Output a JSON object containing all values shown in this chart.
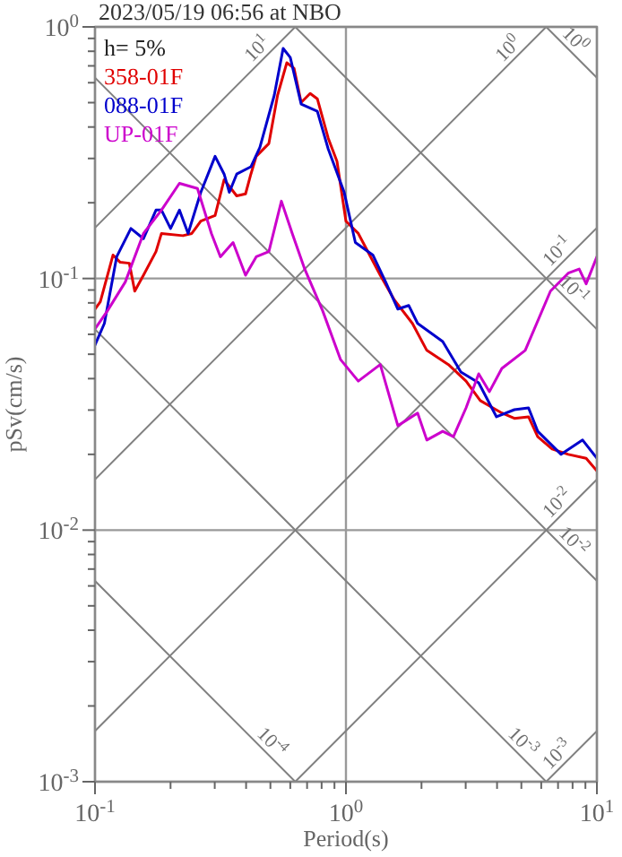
{
  "chart_data": {
    "type": "line",
    "title": "2023/05/19 06:56 at NBO",
    "xlabel": "Period(s)",
    "ylabel": "pSv(cm/s)",
    "legend_title": "h= 5%",
    "legend": "top left",
    "log": "xy",
    "grid": true,
    "xlim": [
      0.1,
      10
    ],
    "ylim": [
      0.001,
      1
    ],
    "xticks": [
      {
        "value": 0.1,
        "label": "10$^{-1}$"
      },
      {
        "value": 0.2,
        "label": null
      },
      {
        "value": 0.3,
        "label": null
      },
      {
        "value": 0.4,
        "label": null
      },
      {
        "value": 0.5,
        "label": null
      },
      {
        "value": 0.6,
        "label": null
      },
      {
        "value": 0.7,
        "label": null
      },
      {
        "value": 0.8,
        "label": null
      },
      {
        "value": 0.9,
        "label": null
      },
      {
        "value": 1,
        "label": "10$^{0}$"
      },
      {
        "value": 2,
        "label": null
      },
      {
        "value": 3,
        "label": null
      },
      {
        "value": 4,
        "label": null
      },
      {
        "value": 5,
        "label": null
      },
      {
        "value": 6,
        "label": null
      },
      {
        "value": 7,
        "label": null
      },
      {
        "value": 8,
        "label": null
      },
      {
        "value": 9,
        "label": null
      },
      {
        "value": 10,
        "label": "10$^{1}$"
      }
    ],
    "yticks": [
      {
        "value": 0.001,
        "label": "10$^{-3}$"
      },
      {
        "value": 0.002,
        "label": null
      },
      {
        "value": 0.003,
        "label": null
      },
      {
        "value": 0.004,
        "label": null
      },
      {
        "value": 0.005,
        "label": null
      },
      {
        "value": 0.006,
        "label": null
      },
      {
        "value": 0.007,
        "label": null
      },
      {
        "value": 0.008,
        "label": null
      },
      {
        "value": 0.009,
        "label": null
      },
      {
        "value": 0.01,
        "label": "10$^{-2}$"
      },
      {
        "value": 0.02,
        "label": null
      },
      {
        "value": 0.03,
        "label": null
      },
      {
        "value": 0.04,
        "label": null
      },
      {
        "value": 0.05,
        "label": null
      },
      {
        "value": 0.06,
        "label": null
      },
      {
        "value": 0.07,
        "label": null
      },
      {
        "value": 0.08,
        "label": null
      },
      {
        "value": 0.09,
        "label": null
      },
      {
        "value": 0.1,
        "label": "10$^{-1}$"
      },
      {
        "value": 0.2,
        "label": null
      },
      {
        "value": 0.3,
        "label": null
      },
      {
        "value": 0.4,
        "label": null
      },
      {
        "value": 0.5,
        "label": null
      },
      {
        "value": 0.6,
        "label": null
      },
      {
        "value": 0.7,
        "label": null
      },
      {
        "value": 0.8,
        "label": null
      },
      {
        "value": 0.9,
        "label": null
      },
      {
        "value": 1,
        "label": "10$^{0}$"
      }
    ],
    "series": [
      {
        "name": "358-01F",
        "color": "#e00000",
        "x": [
          0.1,
          0.105,
          0.118,
          0.126,
          0.137,
          0.144,
          0.156,
          0.175,
          0.184,
          0.224,
          0.243,
          0.264,
          0.301,
          0.327,
          0.367,
          0.398,
          0.418,
          0.439,
          0.493,
          0.534,
          0.581,
          0.621,
          0.663,
          0.72,
          0.769,
          0.85,
          0.921,
          1,
          1.12,
          1.37,
          1.56,
          1.84,
          2.1,
          2.56,
          3.01,
          3.43,
          3.85,
          4.18,
          4.69,
          5.34,
          5.81,
          6.63,
          7.69,
          9.06,
          10
        ],
        "values": [
          0.0756,
          0.0808,
          0.124,
          0.116,
          0.115,
          0.0891,
          0.103,
          0.128,
          0.151,
          0.148,
          0.151,
          0.169,
          0.178,
          0.247,
          0.213,
          0.217,
          0.26,
          0.306,
          0.344,
          0.535,
          0.72,
          0.685,
          0.501,
          0.544,
          0.518,
          0.361,
          0.292,
          0.169,
          0.151,
          0.103,
          0.0821,
          0.0663,
          0.0518,
          0.0455,
          0.0391,
          0.0327,
          0.0306,
          0.0292,
          0.0278,
          0.0282,
          0.0235,
          0.021,
          0.02,
          0.0193,
          0.0172
        ]
      },
      {
        "name": "088-01F",
        "color": "#0000cc",
        "x": [
          0.1,
          0.109,
          0.122,
          0.139,
          0.156,
          0.175,
          0.184,
          0.2,
          0.217,
          0.235,
          0.264,
          0.301,
          0.327,
          0.343,
          0.367,
          0.418,
          0.454,
          0.518,
          0.562,
          0.6,
          0.663,
          0.769,
          0.85,
          0.984,
          1.09,
          1.28,
          1.44,
          1.61,
          1.78,
          1.93,
          2.43,
          2.87,
          3.38,
          3.98,
          4.69,
          5.34,
          5.81,
          7.2,
          8.77,
          10
        ],
        "values": [
          0.0544,
          0.0663,
          0.122,
          0.158,
          0.144,
          0.187,
          0.187,
          0.158,
          0.187,
          0.151,
          0.22,
          0.306,
          0.26,
          0.22,
          0.26,
          0.278,
          0.332,
          0.535,
          0.821,
          0.756,
          0.493,
          0.462,
          0.327,
          0.22,
          0.139,
          0.124,
          0.0968,
          0.0756,
          0.0781,
          0.0663,
          0.0562,
          0.0425,
          0.0385,
          0.0282,
          0.0301,
          0.0306,
          0.0247,
          0.02,
          0.0228,
          0.0193
        ]
      },
      {
        "name": "UP-01F",
        "color": "#cc00cc",
        "x": [
          0.1,
          0.112,
          0.132,
          0.156,
          0.184,
          0.217,
          0.256,
          0.291,
          0.316,
          0.355,
          0.398,
          0.439,
          0.493,
          0.553,
          0.611,
          0.685,
          0.808,
          0.952,
          1.12,
          1.37,
          1.61,
          1.93,
          2.1,
          2.43,
          2.68,
          3.01,
          3.38,
          3.73,
          4.18,
          5.18,
          6.53,
          7.69,
          8.5,
          9.06,
          10
        ],
        "values": [
          0.0631,
          0.0743,
          0.0968,
          0.151,
          0.187,
          0.239,
          0.228,
          0.151,
          0.122,
          0.139,
          0.103,
          0.122,
          0.128,
          0.203,
          0.151,
          0.109,
          0.0743,
          0.0476,
          0.0391,
          0.0455,
          0.026,
          0.0292,
          0.0228,
          0.0247,
          0.0235,
          0.0306,
          0.0418,
          0.0355,
          0.0439,
          0.0518,
          0.0891,
          0.105,
          0.109,
          0.0952,
          0.122
        ]
      },
      {
        "type": "line",
        "name": "10$^{1}$",
        "color": "#808080",
        "x": [
          0.1,
          0.628
        ],
        "values": [
          0.159,
          1
        ]
      },
      {
        "type": "line",
        "name": "10$^{0}$",
        "color": "#808080",
        "x": [
          0.1,
          6.28
        ],
        "values": [
          0.0159,
          1
        ]
      },
      {
        "type": "line",
        "name": "10$^{-1}$",
        "color": "#808080",
        "x": [
          0.1,
          10
        ],
        "values": [
          0.00159,
          0.159
        ]
      },
      {
        "type": "line",
        "name": "10$^{-2}$",
        "color": "#808080",
        "x": [
          0.628,
          10
        ],
        "values": [
          0.001,
          0.0159
        ]
      },
      {
        "type": "line",
        "name": "10$^{-3}$",
        "color": "#808080",
        "x": [
          6.28,
          10
        ],
        "values": [
          0.001,
          0.00159
        ]
      },
      {
        "type": "line",
        "name": "10$^{0}$",
        "color": "#808080",
        "x": [
          6.28,
          10
        ],
        "values": [
          1,
          0.628
        ]
      },
      {
        "type": "line",
        "name": "10$^{-1}$",
        "color": "#808080",
        "x": [
          0.628,
          10
        ],
        "values": [
          1,
          0.0628
        ]
      },
      {
        "type": "line",
        "name": "10$^{-2}$",
        "color": "#808080",
        "x": [
          0.1,
          10
        ],
        "values": [
          0.628,
          0.00628
        ]
      },
      {
        "type": "line",
        "name": "10$^{-3}$",
        "color": "#808080",
        "x": [
          0.1,
          6.28
        ],
        "values": [
          0.0628,
          0.001
        ]
      },
      {
        "type": "line",
        "name": "10$^{-4}$",
        "color": "#808080",
        "x": [
          0.1,
          0.628
        ],
        "values": [
          0.00628,
          0.001
        ]
      }
    ]
  }
}
